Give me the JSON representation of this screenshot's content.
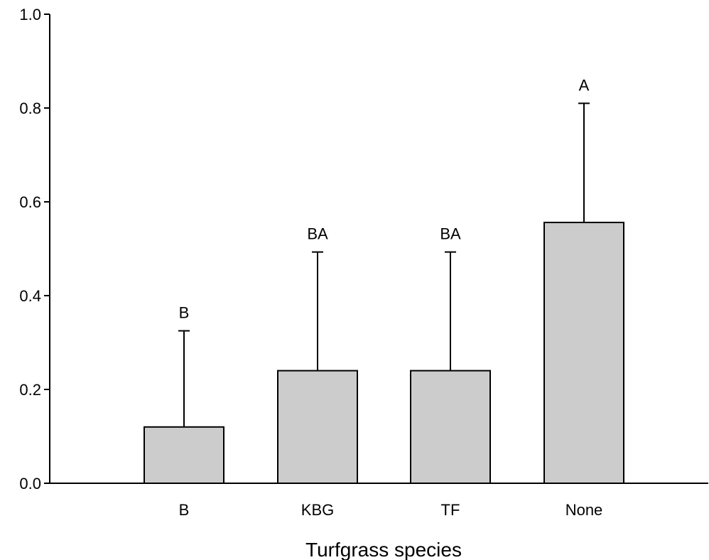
{
  "chart_data": {
    "type": "bar",
    "xlabel": "Turfgrass species",
    "ylabel": "",
    "ylim": [
      0,
      1.0
    ],
    "yticks": [
      "0.0",
      "0.2",
      "0.4",
      "0.6",
      "0.8",
      "1.0"
    ],
    "categories": [
      "B",
      "KBG",
      "TF",
      "None"
    ],
    "values": [
      0.12,
      0.24,
      0.24,
      0.556
    ],
    "error_upper": [
      0.325,
      0.493,
      0.493,
      0.81
    ],
    "significance_letters": [
      "B",
      "BA",
      "BA",
      "A"
    ],
    "grid": false,
    "colors": {
      "bar_fill": "#cccccc",
      "bar_stroke": "#000000",
      "axis": "#000000"
    }
  }
}
